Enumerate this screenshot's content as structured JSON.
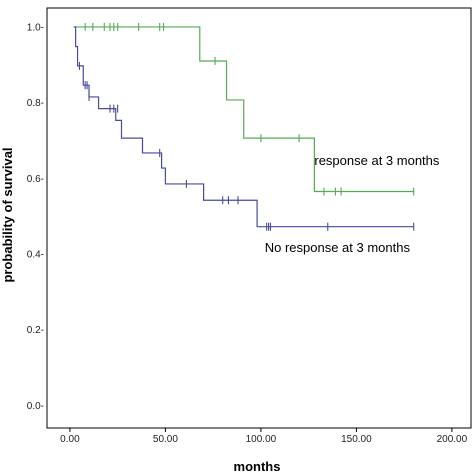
{
  "chart_data": {
    "type": "line",
    "xlabel": "months",
    "ylabel": "probability of survival",
    "xlim": [
      -12,
      210
    ],
    "ylim": [
      -0.06,
      1.05
    ],
    "xticks": [
      0,
      50,
      100,
      150,
      200
    ],
    "xtick_labels": [
      "0.00",
      "50.00",
      "100.00",
      "150.00",
      "200.00"
    ],
    "yticks": [
      0.0,
      0.2,
      0.4,
      0.6,
      0.8,
      1.0
    ],
    "ytick_labels": [
      "0.0-",
      "0.2-",
      "0.4-",
      "0.6-",
      "0.8-",
      "1.0-"
    ],
    "grid": false,
    "series": [
      {
        "name": "response at 3 months",
        "color": "#55aa55",
        "steps": [
          [
            2,
            1.0
          ],
          [
            68,
            1.0
          ],
          [
            68,
            0.91
          ],
          [
            82,
            0.91
          ],
          [
            82,
            0.807
          ],
          [
            91,
            0.807
          ],
          [
            91,
            0.706
          ],
          [
            128,
            0.706
          ],
          [
            128,
            0.565
          ],
          [
            180,
            0.565
          ]
        ],
        "censored": [
          [
            8,
            1.0
          ],
          [
            12,
            1.0
          ],
          [
            18,
            1.0
          ],
          [
            21,
            1.0
          ],
          [
            23,
            1.0
          ],
          [
            25,
            1.0
          ],
          [
            36,
            1.0
          ],
          [
            47,
            1.0
          ],
          [
            49,
            1.0
          ],
          [
            76,
            0.91
          ],
          [
            100,
            0.706
          ],
          [
            120,
            0.706
          ],
          [
            133,
            0.565
          ],
          [
            139,
            0.565
          ],
          [
            142,
            0.565
          ],
          [
            180,
            0.565
          ]
        ]
      },
      {
        "name": "No response at 3 months",
        "color": "#4a4aa0",
        "steps": [
          [
            2,
            1.0
          ],
          [
            3,
            1.0
          ],
          [
            3,
            0.948
          ],
          [
            4,
            0.948
          ],
          [
            4,
            0.897
          ],
          [
            7,
            0.897
          ],
          [
            7,
            0.846
          ],
          [
            10,
            0.846
          ],
          [
            10,
            0.815
          ],
          [
            15,
            0.815
          ],
          [
            15,
            0.784
          ],
          [
            24,
            0.784
          ],
          [
            24,
            0.753
          ],
          [
            27,
            0.753
          ],
          [
            27,
            0.706
          ],
          [
            38,
            0.706
          ],
          [
            38,
            0.667
          ],
          [
            48,
            0.667
          ],
          [
            48,
            0.627
          ],
          [
            50,
            0.627
          ],
          [
            50,
            0.585
          ],
          [
            70,
            0.585
          ],
          [
            70,
            0.542
          ],
          [
            98,
            0.542
          ],
          [
            98,
            0.472
          ],
          [
            180,
            0.472
          ]
        ],
        "censored": [
          [
            5,
            0.897
          ],
          [
            8,
            0.846
          ],
          [
            9,
            0.846
          ],
          [
            10,
            0.815
          ],
          [
            21,
            0.784
          ],
          [
            23,
            0.784
          ],
          [
            25,
            0.784
          ],
          [
            47,
            0.667
          ],
          [
            61,
            0.585
          ],
          [
            80,
            0.542
          ],
          [
            83,
            0.542
          ],
          [
            88,
            0.542
          ],
          [
            103,
            0.472
          ],
          [
            104,
            0.472
          ],
          [
            105,
            0.472
          ],
          [
            135,
            0.472
          ],
          [
            180,
            0.472
          ]
        ]
      }
    ],
    "annotations": [
      {
        "text": "response at 3 months",
        "x": 128,
        "y": 0.635
      },
      {
        "text": "No response at 3 months",
        "x": 102,
        "y": 0.405
      }
    ]
  }
}
